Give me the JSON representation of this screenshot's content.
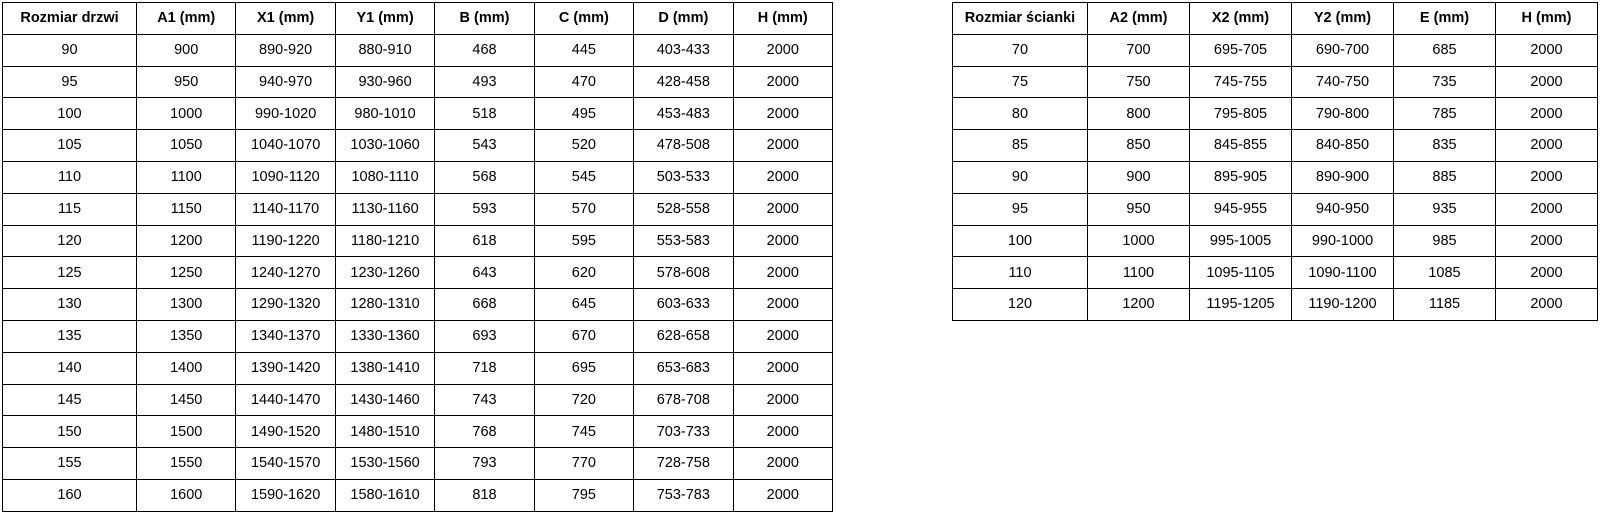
{
  "tables": [
    {
      "name": "door-sizes",
      "headers": [
        "Rozmiar drzwi",
        "A1 (mm)",
        "X1 (mm)",
        "Y1 (mm)",
        "B (mm)",
        "C (mm)",
        "D (mm)",
        "H (mm)"
      ],
      "rows": [
        [
          "90",
          "900",
          "890-920",
          "880-910",
          "468",
          "445",
          "403-433",
          "2000"
        ],
        [
          "95",
          "950",
          "940-970",
          "930-960",
          "493",
          "470",
          "428-458",
          "2000"
        ],
        [
          "100",
          "1000",
          "990-1020",
          "980-1010",
          "518",
          "495",
          "453-483",
          "2000"
        ],
        [
          "105",
          "1050",
          "1040-1070",
          "1030-1060",
          "543",
          "520",
          "478-508",
          "2000"
        ],
        [
          "110",
          "1100",
          "1090-1120",
          "1080-1110",
          "568",
          "545",
          "503-533",
          "2000"
        ],
        [
          "115",
          "1150",
          "1140-1170",
          "1130-1160",
          "593",
          "570",
          "528-558",
          "2000"
        ],
        [
          "120",
          "1200",
          "1190-1220",
          "1180-1210",
          "618",
          "595",
          "553-583",
          "2000"
        ],
        [
          "125",
          "1250",
          "1240-1270",
          "1230-1260",
          "643",
          "620",
          "578-608",
          "2000"
        ],
        [
          "130",
          "1300",
          "1290-1320",
          "1280-1310",
          "668",
          "645",
          "603-633",
          "2000"
        ],
        [
          "135",
          "1350",
          "1340-1370",
          "1330-1360",
          "693",
          "670",
          "628-658",
          "2000"
        ],
        [
          "140",
          "1400",
          "1390-1420",
          "1380-1410",
          "718",
          "695",
          "653-683",
          "2000"
        ],
        [
          "145",
          "1450",
          "1440-1470",
          "1430-1460",
          "743",
          "720",
          "678-708",
          "2000"
        ],
        [
          "150",
          "1500",
          "1490-1520",
          "1480-1510",
          "768",
          "745",
          "703-733",
          "2000"
        ],
        [
          "155",
          "1550",
          "1540-1570",
          "1530-1560",
          "793",
          "770",
          "728-758",
          "2000"
        ],
        [
          "160",
          "1600",
          "1590-1620",
          "1580-1610",
          "818",
          "795",
          "753-783",
          "2000"
        ]
      ]
    },
    {
      "name": "wall-sizes",
      "headers": [
        "Rozmiar ścianki",
        "A2 (mm)",
        "X2 (mm)",
        "Y2 (mm)",
        "E (mm)",
        "H (mm)"
      ],
      "rows": [
        [
          "70",
          "700",
          "695-705",
          "690-700",
          "685",
          "2000"
        ],
        [
          "75",
          "750",
          "745-755",
          "740-750",
          "735",
          "2000"
        ],
        [
          "80",
          "800",
          "795-805",
          "790-800",
          "785",
          "2000"
        ],
        [
          "85",
          "850",
          "845-855",
          "840-850",
          "835",
          "2000"
        ],
        [
          "90",
          "900",
          "895-905",
          "890-900",
          "885",
          "2000"
        ],
        [
          "95",
          "950",
          "945-955",
          "940-950",
          "935",
          "2000"
        ],
        [
          "100",
          "1000",
          "995-1005",
          "990-1000",
          "985",
          "2000"
        ],
        [
          "110",
          "1100",
          "1095-1105",
          "1090-1100",
          "1085",
          "2000"
        ],
        [
          "120",
          "1200",
          "1195-1205",
          "1190-1200",
          "1185",
          "2000"
        ]
      ]
    }
  ],
  "colors": {
    "border": "#000000",
    "text": "#000000",
    "background": "#ffffff"
  }
}
